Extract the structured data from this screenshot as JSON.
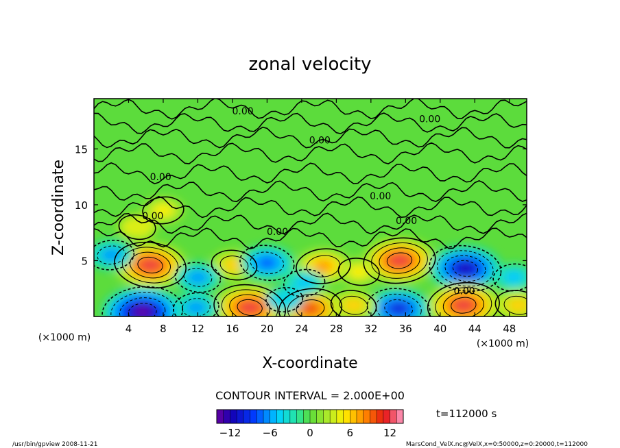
{
  "chart_data": {
    "type": "heatmap",
    "title": "zonal velocity",
    "xlabel": "X-coordinate",
    "ylabel": "Z-coordinate",
    "x_unit_left": "(×1000 m)",
    "x_unit_right": "(×1000 m)",
    "xlim": [
      0,
      50
    ],
    "ylim": [
      0,
      19.5
    ],
    "xticks": [
      4,
      8,
      12,
      16,
      20,
      24,
      28,
      32,
      36,
      40,
      44,
      48
    ],
    "yticks": [
      5,
      10,
      15
    ],
    "contour_interval_label": "CONTOUR INTERVAL = 2.000E+00",
    "contour_labels": [
      {
        "text": "0.00",
        "x": 17.2,
        "z": 18.4
      },
      {
        "text": "0.00",
        "x": 38.8,
        "z": 17.7
      },
      {
        "text": "0.00",
        "x": 26.1,
        "z": 15.8
      },
      {
        "text": "0.00",
        "x": 7.7,
        "z": 12.5
      },
      {
        "text": "0.00",
        "x": 33.1,
        "z": 10.8
      },
      {
        "text": "0.00",
        "x": 36.1,
        "z": 8.6
      },
      {
        "text": "0.00",
        "x": 6.8,
        "z": 9.0
      },
      {
        "text": "0.00",
        "x": 21.2,
        "z": 7.6
      },
      {
        "text": "0.00",
        "x": 42.8,
        "z": 2.3
      }
    ],
    "features": [
      {
        "x": 6.5,
        "z": 4.6,
        "value": 12
      },
      {
        "x": 35.3,
        "z": 5.0,
        "value": 12
      },
      {
        "x": 42.9,
        "z": 4.3,
        "value": -12
      },
      {
        "x": 5.6,
        "z": 0.4,
        "value": -14
      },
      {
        "x": 18.0,
        "z": 0.8,
        "value": 12
      },
      {
        "x": 25.0,
        "z": 0.7,
        "value": 10
      },
      {
        "x": 35.2,
        "z": 0.7,
        "value": -10
      },
      {
        "x": 42.7,
        "z": 1.0,
        "value": 12
      },
      {
        "x": 16.2,
        "z": 4.6,
        "value": 6
      },
      {
        "x": 26.5,
        "z": 4.5,
        "value": 8
      },
      {
        "x": 20.0,
        "z": 4.8,
        "value": -8
      },
      {
        "x": 24.3,
        "z": 3.0,
        "value": -5
      },
      {
        "x": 30.6,
        "z": 4.0,
        "value": 5
      },
      {
        "x": 2.0,
        "z": 5.5,
        "value": -6
      },
      {
        "x": 12.0,
        "z": 3.5,
        "value": -6
      },
      {
        "x": 11.8,
        "z": 0.8,
        "value": -6
      },
      {
        "x": 30.0,
        "z": 1.0,
        "value": 6
      },
      {
        "x": 48.5,
        "z": 3.5,
        "value": -5
      },
      {
        "x": 49.0,
        "z": 1.0,
        "value": 6
      },
      {
        "x": 22.0,
        "z": 1.5,
        "value": -4
      },
      {
        "x": 5.0,
        "z": 8.0,
        "value": 4
      },
      {
        "x": 8.0,
        "z": 9.5,
        "value": 5
      }
    ],
    "colorbar": {
      "min": -14,
      "max": 14,
      "ticks": [
        -12,
        -6,
        0,
        6,
        12
      ],
      "tick_labels": [
        "−12",
        "−6",
        "0",
        "6",
        "12"
      ]
    },
    "time_label": "t=112000 s"
  },
  "footer": {
    "left": "/usr/bin/gpview   2008-11-21",
    "right": "MarsCond_VelX.nc@VelX,x=0:50000,z=0:20000,t=112000"
  }
}
